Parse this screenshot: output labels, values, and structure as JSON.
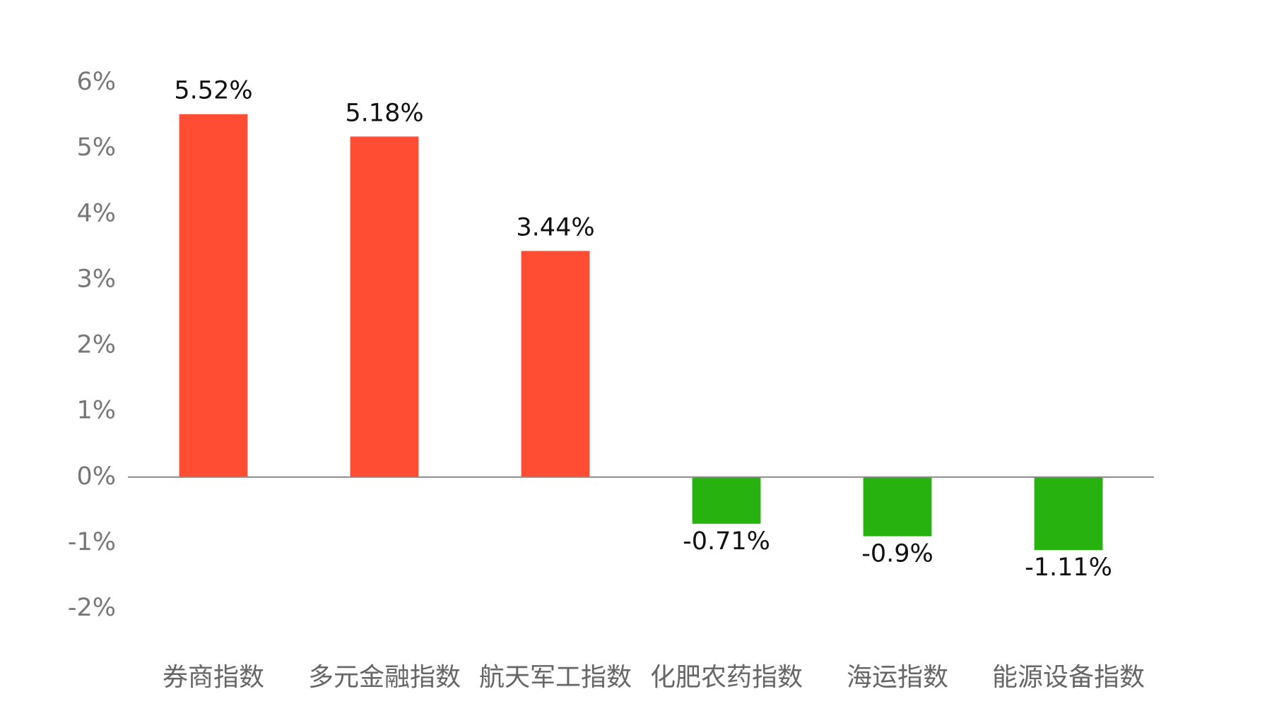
{
  "chart_data": {
    "type": "bar",
    "categories": [
      "券商指数",
      "多元金融指数",
      "航天军工指数",
      "化肥农药指数",
      "海运指数",
      "能源设备指数"
    ],
    "values": [
      5.52,
      5.18,
      3.44,
      -0.71,
      -0.9,
      -1.11
    ],
    "value_labels": [
      "5.52%",
      "5.18%",
      "3.44%",
      "-0.71%",
      "-0.9%",
      "-1.11%"
    ],
    "colors": [
      "#ff4d33",
      "#ff4d33",
      "#ff4d33",
      "#28b20f",
      "#28b20f",
      "#28b20f"
    ],
    "ylim": [
      -2,
      6
    ],
    "yticks": [
      {
        "value": -2,
        "label": "-2%"
      },
      {
        "value": -1,
        "label": "-1%"
      },
      {
        "value": 0,
        "label": "0%"
      },
      {
        "value": 1,
        "label": "1%"
      },
      {
        "value": 2,
        "label": "2%"
      },
      {
        "value": 3,
        "label": "3%"
      },
      {
        "value": 4,
        "label": "4%"
      },
      {
        "value": 5,
        "label": "5%"
      },
      {
        "value": 6,
        "label": "6%"
      }
    ],
    "grid": false
  }
}
